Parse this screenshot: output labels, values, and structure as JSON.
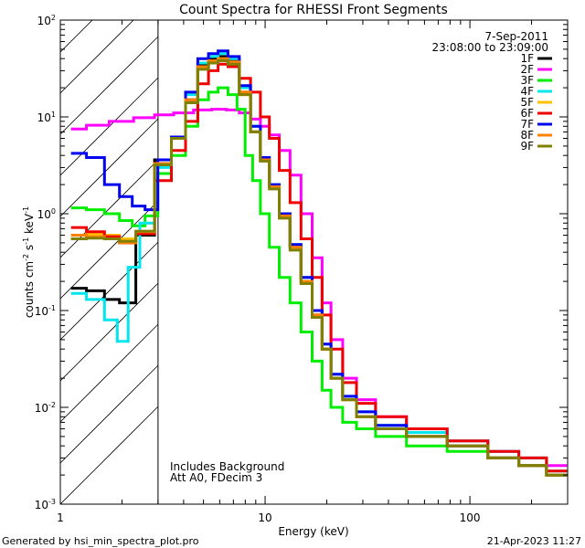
{
  "chart_data": {
    "type": "line",
    "title": "Count Spectra for RHESSI Front Segments",
    "xlabel": "Energy (keV)",
    "ylabel_parts": {
      "a": "counts cm",
      "b": "-2",
      "c": " s",
      "d": "-1",
      "e": " keV",
      "f": "-1"
    },
    "xscale": "log",
    "yscale": "log",
    "xlim": [
      1,
      300
    ],
    "ylim": [
      0.001,
      100
    ],
    "x_tick_labels": [
      {
        "value": 1,
        "label": "1"
      },
      {
        "value": 10,
        "label": "10"
      },
      {
        "value": 100,
        "label": "100"
      }
    ],
    "y_tick_labels": [
      {
        "value": 0.001,
        "base": "10",
        "exp": "-3"
      },
      {
        "value": 0.01,
        "base": "10",
        "exp": "-2"
      },
      {
        "value": 0.1,
        "base": "10",
        "exp": "-1"
      },
      {
        "value": 1,
        "base": "10",
        "exp": "0"
      },
      {
        "value": 10,
        "base": "10",
        "exp": "1"
      },
      {
        "value": 100,
        "base": "10",
        "exp": "2"
      }
    ],
    "date": "7-Sep-2011",
    "time_range": "23:08:00 to 23:09:00",
    "annotations": [
      "Includes Background",
      "Att A0, FDecim 3"
    ],
    "excluded_region": {
      "from_keV": 1,
      "to_keV": 3
    },
    "legend_position": "top-right",
    "series": [
      {
        "name": "1F",
        "color": "#000000",
        "points": [
          [
            1.2,
            0.17
          ],
          [
            1.5,
            0.16
          ],
          [
            1.8,
            0.13
          ],
          [
            2.1,
            0.12
          ],
          [
            2.6,
            0.6
          ],
          [
            3.2,
            3.6
          ],
          [
            3.8,
            6
          ],
          [
            4.4,
            15
          ],
          [
            5.0,
            35
          ],
          [
            5.6,
            40
          ],
          [
            6.2,
            42
          ],
          [
            7.0,
            38
          ],
          [
            8.0,
            18
          ],
          [
            9.0,
            7
          ],
          [
            10.0,
            3.5
          ],
          [
            11.0,
            1.9
          ],
          [
            12.5,
            0.95
          ],
          [
            14.0,
            0.45
          ],
          [
            16.0,
            0.2
          ],
          [
            18.0,
            0.09
          ],
          [
            20.0,
            0.04
          ],
          [
            22.0,
            0.02
          ],
          [
            26.0,
            0.012
          ],
          [
            30.0,
            0.008
          ],
          [
            40.0,
            0.006
          ],
          [
            60.0,
            0.005
          ],
          [
            100.0,
            0.004
          ],
          [
            150.0,
            0.003
          ],
          [
            200.0,
            0.0025
          ],
          [
            280.0,
            0.002
          ]
        ]
      },
      {
        "name": "2F",
        "color": "#ff00ff",
        "points": [
          [
            1.2,
            7.5
          ],
          [
            1.5,
            8.2
          ],
          [
            2.0,
            9.0
          ],
          [
            2.6,
            9.8
          ],
          [
            3.2,
            10.5
          ],
          [
            4.0,
            11
          ],
          [
            5.0,
            11.8
          ],
          [
            6.0,
            12
          ],
          [
            7.0,
            11.8
          ],
          [
            8.0,
            11
          ],
          [
            9.0,
            9.5
          ],
          [
            10.0,
            8
          ],
          [
            11.0,
            6.5
          ],
          [
            12.5,
            4.5
          ],
          [
            14.0,
            2.5
          ],
          [
            16.0,
            1.0
          ],
          [
            18.0,
            0.35
          ],
          [
            20.0,
            0.12
          ],
          [
            22.0,
            0.05
          ],
          [
            26.0,
            0.02
          ],
          [
            30.0,
            0.012
          ],
          [
            40.0,
            0.008
          ],
          [
            60.0,
            0.006
          ],
          [
            100.0,
            0.0045
          ],
          [
            150.0,
            0.0035
          ],
          [
            200.0,
            0.003
          ],
          [
            280.0,
            0.0025
          ]
        ]
      },
      {
        "name": "3F",
        "color": "#00ee00",
        "points": [
          [
            1.2,
            1.15
          ],
          [
            1.5,
            1.1
          ],
          [
            1.8,
            1.0
          ],
          [
            2.1,
            0.85
          ],
          [
            2.4,
            0.75
          ],
          [
            2.8,
            0.95
          ],
          [
            3.2,
            2.6
          ],
          [
            3.8,
            4.0
          ],
          [
            4.4,
            8
          ],
          [
            5.0,
            15
          ],
          [
            5.6,
            18
          ],
          [
            6.2,
            20
          ],
          [
            7.0,
            17
          ],
          [
            7.6,
            12
          ],
          [
            8.4,
            4
          ],
          [
            9.0,
            2.2
          ],
          [
            10.0,
            1.0
          ],
          [
            11.0,
            0.45
          ],
          [
            12.5,
            0.22
          ],
          [
            14.0,
            0.12
          ],
          [
            16.0,
            0.06
          ],
          [
            18.0,
            0.03
          ],
          [
            20.0,
            0.015
          ],
          [
            22.0,
            0.01
          ],
          [
            26.0,
            0.007
          ],
          [
            30.0,
            0.006
          ],
          [
            40.0,
            0.005
          ],
          [
            60.0,
            0.004
          ],
          [
            100.0,
            0.0035
          ],
          [
            150.0,
            0.003
          ],
          [
            200.0,
            0.0025
          ],
          [
            280.0,
            0.002
          ]
        ]
      },
      {
        "name": "4F",
        "color": "#00e5ee",
        "points": [
          [
            1.2,
            0.15
          ],
          [
            1.5,
            0.13
          ],
          [
            1.8,
            0.08
          ],
          [
            2.0,
            0.048
          ],
          [
            2.3,
            0.28
          ],
          [
            2.6,
            0.8
          ],
          [
            3.2,
            3.0
          ],
          [
            3.8,
            6
          ],
          [
            4.4,
            17
          ],
          [
            5.0,
            36
          ],
          [
            5.6,
            42
          ],
          [
            6.2,
            45
          ],
          [
            7.0,
            40
          ],
          [
            8.0,
            20
          ],
          [
            9.0,
            8
          ],
          [
            10.0,
            3.8
          ],
          [
            11.0,
            2.0
          ],
          [
            12.5,
            1.0
          ],
          [
            14.0,
            0.48
          ],
          [
            16.0,
            0.22
          ],
          [
            18.0,
            0.1
          ],
          [
            20.0,
            0.045
          ],
          [
            22.0,
            0.022
          ],
          [
            26.0,
            0.013
          ],
          [
            30.0,
            0.009
          ],
          [
            40.0,
            0.0065
          ],
          [
            60.0,
            0.0055
          ],
          [
            100.0,
            0.0045
          ],
          [
            150.0,
            0.0035
          ],
          [
            200.0,
            0.003
          ],
          [
            280.0,
            0.0022
          ]
        ]
      },
      {
        "name": "5F",
        "color": "#ffc000",
        "points": [
          [
            1.2,
            0.55
          ],
          [
            1.5,
            0.62
          ],
          [
            1.8,
            0.6
          ],
          [
            2.1,
            0.55
          ],
          [
            2.6,
            0.62
          ],
          [
            3.2,
            3.2
          ],
          [
            3.8,
            6
          ],
          [
            4.4,
            14
          ],
          [
            5.0,
            32
          ],
          [
            5.6,
            38
          ],
          [
            6.2,
            40
          ],
          [
            7.0,
            36
          ],
          [
            8.0,
            17
          ],
          [
            9.0,
            7
          ],
          [
            10.0,
            3.5
          ],
          [
            11.0,
            1.9
          ],
          [
            12.5,
            0.95
          ],
          [
            14.0,
            0.45
          ],
          [
            16.0,
            0.2
          ],
          [
            18.0,
            0.09
          ],
          [
            20.0,
            0.04
          ],
          [
            22.0,
            0.02
          ],
          [
            26.0,
            0.012
          ],
          [
            30.0,
            0.008
          ],
          [
            40.0,
            0.006
          ],
          [
            60.0,
            0.005
          ],
          [
            100.0,
            0.004
          ],
          [
            150.0,
            0.003
          ],
          [
            200.0,
            0.0025
          ],
          [
            280.0,
            0.002
          ]
        ]
      },
      {
        "name": "6F",
        "color": "#ee0000",
        "points": [
          [
            1.2,
            0.72
          ],
          [
            1.5,
            0.65
          ],
          [
            1.8,
            0.58
          ],
          [
            2.1,
            0.5
          ],
          [
            2.6,
            0.62
          ],
          [
            3.2,
            2.2
          ],
          [
            3.8,
            4.5
          ],
          [
            4.4,
            9
          ],
          [
            5.0,
            22
          ],
          [
            5.6,
            30
          ],
          [
            6.2,
            35
          ],
          [
            7.0,
            33
          ],
          [
            8.0,
            25
          ],
          [
            9.0,
            18
          ],
          [
            10.0,
            10
          ],
          [
            11.0,
            6
          ],
          [
            12.5,
            2.8
          ],
          [
            14.0,
            1.3
          ],
          [
            16.0,
            0.55
          ],
          [
            18.0,
            0.22
          ],
          [
            20.0,
            0.09
          ],
          [
            22.0,
            0.04
          ],
          [
            26.0,
            0.018
          ],
          [
            30.0,
            0.011
          ],
          [
            40.0,
            0.008
          ],
          [
            60.0,
            0.006
          ],
          [
            100.0,
            0.0045
          ],
          [
            150.0,
            0.0035
          ],
          [
            200.0,
            0.003
          ],
          [
            280.0,
            0.0022
          ]
        ]
      },
      {
        "name": "7F",
        "color": "#0000ee",
        "points": [
          [
            1.2,
            4.2
          ],
          [
            1.5,
            3.8
          ],
          [
            1.8,
            2.0
          ],
          [
            2.1,
            1.5
          ],
          [
            2.4,
            1.2
          ],
          [
            2.8,
            1.1
          ],
          [
            3.2,
            3.6
          ],
          [
            3.8,
            6.2
          ],
          [
            4.4,
            18
          ],
          [
            5.0,
            40
          ],
          [
            5.6,
            45
          ],
          [
            6.2,
            48
          ],
          [
            7.0,
            42
          ],
          [
            8.0,
            21
          ],
          [
            9.0,
            8
          ],
          [
            10.0,
            3.8
          ],
          [
            11.0,
            2.0
          ],
          [
            12.5,
            1.0
          ],
          [
            14.0,
            0.48
          ],
          [
            16.0,
            0.22
          ],
          [
            18.0,
            0.1
          ],
          [
            20.0,
            0.045
          ],
          [
            22.0,
            0.022
          ],
          [
            26.0,
            0.013
          ],
          [
            30.0,
            0.009
          ],
          [
            40.0,
            0.0065
          ],
          [
            60.0,
            0.005
          ],
          [
            100.0,
            0.004
          ],
          [
            150.0,
            0.003
          ],
          [
            200.0,
            0.0025
          ],
          [
            280.0,
            0.002
          ]
        ]
      },
      {
        "name": "8F",
        "color": "#ff8000",
        "points": [
          [
            1.2,
            0.6
          ],
          [
            1.5,
            0.58
          ],
          [
            1.8,
            0.55
          ],
          [
            2.1,
            0.5
          ],
          [
            2.6,
            0.65
          ],
          [
            3.2,
            3.3
          ],
          [
            3.8,
            6
          ],
          [
            4.4,
            15
          ],
          [
            5.0,
            33
          ],
          [
            5.6,
            38
          ],
          [
            6.2,
            40
          ],
          [
            7.0,
            37
          ],
          [
            8.0,
            18
          ],
          [
            9.0,
            7
          ],
          [
            10.0,
            3.6
          ],
          [
            11.0,
            1.9
          ],
          [
            12.5,
            0.95
          ],
          [
            14.0,
            0.45
          ],
          [
            16.0,
            0.2
          ],
          [
            18.0,
            0.09
          ],
          [
            20.0,
            0.04
          ],
          [
            22.0,
            0.02
          ],
          [
            26.0,
            0.012
          ],
          [
            30.0,
            0.008
          ],
          [
            40.0,
            0.006
          ],
          [
            60.0,
            0.005
          ],
          [
            100.0,
            0.004
          ],
          [
            150.0,
            0.003
          ],
          [
            200.0,
            0.0025
          ],
          [
            280.0,
            0.002
          ]
        ]
      },
      {
        "name": "9F",
        "color": "#808000",
        "points": [
          [
            1.2,
            0.55
          ],
          [
            1.5,
            0.56
          ],
          [
            1.8,
            0.55
          ],
          [
            2.1,
            0.52
          ],
          [
            2.6,
            0.66
          ],
          [
            3.2,
            3.2
          ],
          [
            3.8,
            6
          ],
          [
            4.4,
            14
          ],
          [
            5.0,
            31
          ],
          [
            5.6,
            36
          ],
          [
            6.2,
            38
          ],
          [
            7.0,
            35
          ],
          [
            8.0,
            17
          ],
          [
            9.0,
            7
          ],
          [
            10.0,
            3.5
          ],
          [
            11.0,
            1.8
          ],
          [
            12.5,
            0.9
          ],
          [
            14.0,
            0.42
          ],
          [
            16.0,
            0.19
          ],
          [
            18.0,
            0.085
          ],
          [
            20.0,
            0.04
          ],
          [
            22.0,
            0.02
          ],
          [
            26.0,
            0.012
          ],
          [
            30.0,
            0.008
          ],
          [
            40.0,
            0.006
          ],
          [
            60.0,
            0.005
          ],
          [
            100.0,
            0.004
          ],
          [
            150.0,
            0.003
          ],
          [
            200.0,
            0.0025
          ],
          [
            280.0,
            0.002
          ]
        ]
      }
    ]
  },
  "footer": {
    "generated_by": "Generated by hsi_min_spectra_plot.pro",
    "timestamp": "21-Apr-2023 11:27"
  }
}
